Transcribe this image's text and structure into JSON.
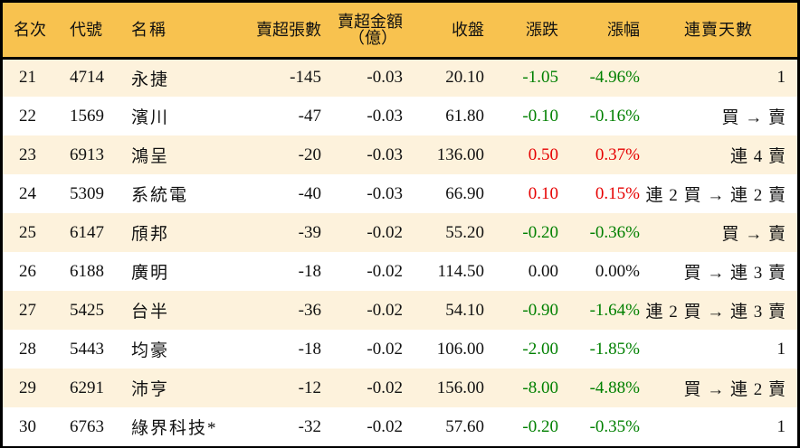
{
  "colors": {
    "header_bg": "#F8C24F",
    "row_odd": "#FDF2DC",
    "row_even": "#FFFFFF",
    "up": "#E60000",
    "down": "#008000",
    "border": "#000000"
  },
  "headers": {
    "rank": "名次",
    "code": "代號",
    "name": "名稱",
    "net_sell_volume": "賣超張數",
    "net_sell_amount_line1": "賣超金額",
    "net_sell_amount_line2": "（億）",
    "close": "收盤",
    "change": "漲跌",
    "change_pct": "漲幅",
    "consecutive_days": "連賣天數"
  },
  "rows": [
    {
      "rank": "21",
      "code": "4714",
      "name": "永捷",
      "volume": "-145",
      "amount": "-0.03",
      "close": "20.10",
      "change": "-1.05",
      "pct": "-4.96%",
      "dir": "down",
      "days": "1"
    },
    {
      "rank": "22",
      "code": "1569",
      "name": "濱川",
      "volume": "-47",
      "amount": "-0.03",
      "close": "61.80",
      "change": "-0.10",
      "pct": "-0.16%",
      "dir": "down",
      "days": "買 → 賣"
    },
    {
      "rank": "23",
      "code": "6913",
      "name": "鴻呈",
      "volume": "-20",
      "amount": "-0.03",
      "close": "136.00",
      "change": "0.50",
      "pct": "0.37%",
      "dir": "up",
      "days": "連 4 賣"
    },
    {
      "rank": "24",
      "code": "5309",
      "name": "系統電",
      "volume": "-40",
      "amount": "-0.03",
      "close": "66.90",
      "change": "0.10",
      "pct": "0.15%",
      "dir": "up",
      "days": "連 2 買 → 連 2 賣"
    },
    {
      "rank": "25",
      "code": "6147",
      "name": "頎邦",
      "volume": "-39",
      "amount": "-0.02",
      "close": "55.20",
      "change": "-0.20",
      "pct": "-0.36%",
      "dir": "down",
      "days": "買 → 賣"
    },
    {
      "rank": "26",
      "code": "6188",
      "name": "廣明",
      "volume": "-18",
      "amount": "-0.02",
      "close": "114.50",
      "change": "0.00",
      "pct": "0.00%",
      "dir": "flat",
      "days": "買 → 連 3 賣"
    },
    {
      "rank": "27",
      "code": "5425",
      "name": "台半",
      "volume": "-36",
      "amount": "-0.02",
      "close": "54.10",
      "change": "-0.90",
      "pct": "-1.64%",
      "dir": "down",
      "days": "連 2 買 → 連 3 賣"
    },
    {
      "rank": "28",
      "code": "5443",
      "name": "均豪",
      "volume": "-18",
      "amount": "-0.02",
      "close": "106.00",
      "change": "-2.00",
      "pct": "-1.85%",
      "dir": "down",
      "days": "1"
    },
    {
      "rank": "29",
      "code": "6291",
      "name": "沛亨",
      "volume": "-12",
      "amount": "-0.02",
      "close": "156.00",
      "change": "-8.00",
      "pct": "-4.88%",
      "dir": "down",
      "days": "買 → 連 2 賣"
    },
    {
      "rank": "30",
      "code": "6763",
      "name": "綠界科技*",
      "volume": "-32",
      "amount": "-0.02",
      "close": "57.60",
      "change": "-0.20",
      "pct": "-0.35%",
      "dir": "down",
      "days": "1"
    }
  ]
}
